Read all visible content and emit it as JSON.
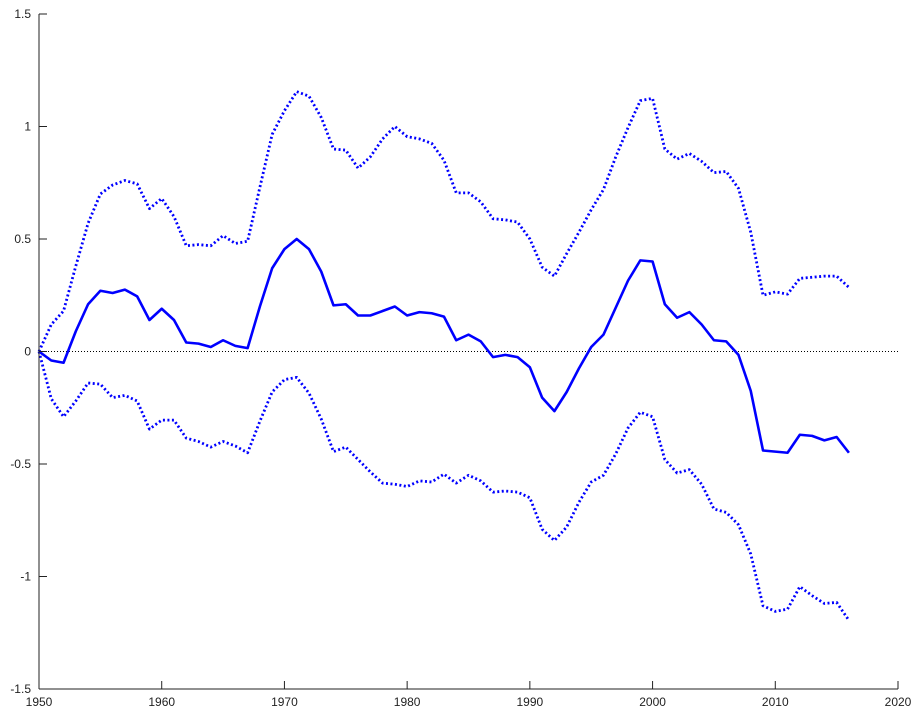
{
  "chart_data": {
    "type": "line",
    "x": [
      1950,
      1951,
      1952,
      1953,
      1954,
      1955,
      1956,
      1957,
      1958,
      1959,
      1960,
      1961,
      1962,
      1963,
      1964,
      1965,
      1966,
      1967,
      1968,
      1969,
      1970,
      1971,
      1972,
      1973,
      1974,
      1975,
      1976,
      1977,
      1978,
      1979,
      1980,
      1981,
      1982,
      1983,
      1984,
      1985,
      1986,
      1987,
      1988,
      1989,
      1990,
      1991,
      1992,
      1993,
      1994,
      1995,
      1996,
      1997,
      1998,
      1999,
      2000,
      2001,
      2002,
      2003,
      2004,
      2005,
      2006,
      2007,
      2008,
      2009,
      2010,
      2011,
      2012,
      2013,
      2014,
      2015,
      2016
    ],
    "series": [
      {
        "color": "#0000ff",
        "dash": "solid",
        "values": [
          0.0,
          -0.04,
          -0.05,
          0.09,
          0.21,
          0.27,
          0.26,
          0.275,
          0.245,
          0.14,
          0.19,
          0.14,
          0.04,
          0.035,
          0.02,
          0.05,
          0.025,
          0.015,
          0.2,
          0.37,
          0.455,
          0.5,
          0.455,
          0.355,
          0.205,
          0.21,
          0.16,
          0.16,
          0.18,
          0.2,
          0.16,
          0.175,
          0.17,
          0.155,
          0.05,
          0.075,
          0.045,
          -0.025,
          -0.015,
          -0.025,
          -0.07,
          -0.205,
          -0.265,
          -0.18,
          -0.075,
          0.02,
          0.075,
          0.195,
          0.315,
          0.405,
          0.4,
          0.21,
          0.15,
          0.175,
          0.12,
          0.05,
          0.045,
          -0.015,
          -0.175,
          -0.44,
          -0.445,
          -0.45,
          -0.37,
          -0.375,
          -0.395,
          -0.38,
          -0.45
        ]
      },
      {
        "color": "#0000ff",
        "dash": "dotted",
        "values": [
          0.0,
          0.12,
          0.18,
          0.38,
          0.57,
          0.7,
          0.74,
          0.76,
          0.745,
          0.635,
          0.68,
          0.6,
          0.47,
          0.475,
          0.47,
          0.515,
          0.48,
          0.49,
          0.73,
          0.965,
          1.07,
          1.155,
          1.135,
          1.04,
          0.9,
          0.895,
          0.815,
          0.865,
          0.945,
          1.0,
          0.955,
          0.945,
          0.925,
          0.85,
          0.705,
          0.705,
          0.665,
          0.59,
          0.585,
          0.575,
          0.5,
          0.375,
          0.335,
          0.435,
          0.53,
          0.63,
          0.72,
          0.865,
          0.995,
          1.115,
          1.125,
          0.9,
          0.855,
          0.88,
          0.845,
          0.795,
          0.8,
          0.725,
          0.53,
          0.25,
          0.265,
          0.255,
          0.325,
          0.33,
          0.335,
          0.335,
          0.285
        ]
      },
      {
        "color": "#0000ff",
        "dash": "dotted",
        "values": [
          0.0,
          -0.21,
          -0.29,
          -0.22,
          -0.14,
          -0.145,
          -0.205,
          -0.195,
          -0.22,
          -0.345,
          -0.305,
          -0.305,
          -0.385,
          -0.4,
          -0.425,
          -0.4,
          -0.42,
          -0.45,
          -0.31,
          -0.18,
          -0.125,
          -0.115,
          -0.185,
          -0.3,
          -0.445,
          -0.425,
          -0.48,
          -0.535,
          -0.585,
          -0.59,
          -0.6,
          -0.575,
          -0.58,
          -0.545,
          -0.585,
          -0.55,
          -0.575,
          -0.625,
          -0.62,
          -0.625,
          -0.65,
          -0.79,
          -0.84,
          -0.78,
          -0.67,
          -0.58,
          -0.55,
          -0.455,
          -0.34,
          -0.27,
          -0.29,
          -0.48,
          -0.54,
          -0.525,
          -0.59,
          -0.7,
          -0.715,
          -0.77,
          -0.9,
          -1.13,
          -1.155,
          -1.145,
          -1.045,
          -1.085,
          -1.12,
          -1.115,
          -1.195
        ]
      }
    ],
    "reference_line": {
      "value": 0,
      "color": "#000000",
      "dash": "dotted"
    },
    "xlim": [
      1950,
      2020
    ],
    "xticks": [
      1950,
      1960,
      1970,
      1980,
      1990,
      2000,
      2010,
      2020
    ],
    "ylim": [
      -1.5,
      1.5
    ],
    "yticks": [
      -1.5,
      -1,
      -0.5,
      0,
      0.5,
      1,
      1.5
    ],
    "grid": false
  }
}
